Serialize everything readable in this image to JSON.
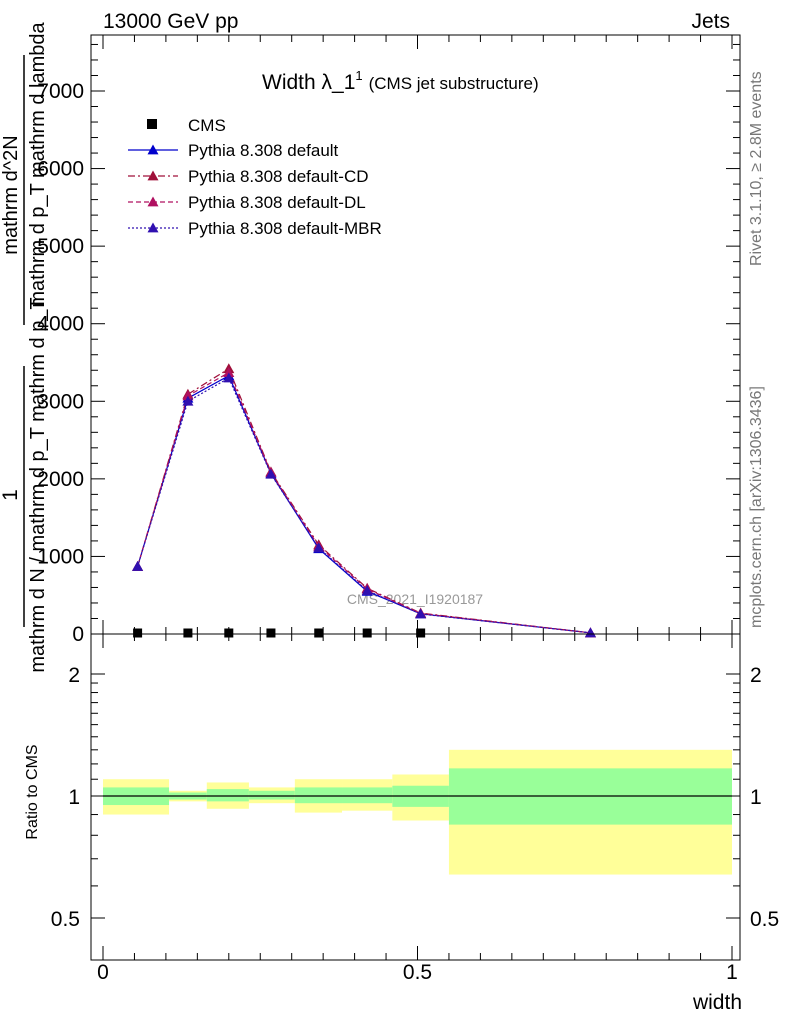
{
  "header": {
    "left": "13000 GeV pp",
    "right": "Jets"
  },
  "side_labels": {
    "rivet": "Rivet 3.1.10, ≥ 2.8M events",
    "mcplots": "mcplots.cern.ch [arXiv:1306.3436]"
  },
  "chart_data": [
    {
      "type": "line",
      "panel": "main",
      "title_main": "Width λ_1",
      "title_sup": "1",
      "title_small": "(CMS jet substructure)",
      "watermark": "CMS_2021_I1920187",
      "ylabel_num": "1",
      "ylabel_den": "mathrm d N / mathrm d p_T mathrm d p_T",
      "ylabel_num2": "mathrm d^2N",
      "ylabel_den2": "mathrm d p_T mathrm d lambda",
      "xlim": [
        0,
        1
      ],
      "ylim": [
        0,
        7600
      ],
      "yticks": [
        {
          "v": 0,
          "label": "0"
        },
        {
          "v": 1000,
          "label": "1000"
        },
        {
          "v": 2000,
          "label": "2000"
        },
        {
          "v": 3000,
          "label": "3000"
        },
        {
          "v": 4000,
          "label": "4000"
        },
        {
          "v": 5000,
          "label": "5000"
        },
        {
          "v": 6000,
          "label": "6000"
        },
        {
          "v": 7000,
          "label": "7000"
        }
      ],
      "cms": {
        "name": "CMS",
        "x": [
          0.055,
          0.135,
          0.2,
          0.267,
          0.343,
          0.42,
          0.505
        ],
        "y": [
          0,
          0,
          0,
          0,
          0,
          0,
          0
        ]
      },
      "series": [
        {
          "name": "Pythia 8.308 default",
          "color": "#0000cc",
          "dash": "",
          "x": [
            0.055,
            0.135,
            0.2,
            0.267,
            0.343,
            0.42,
            0.505,
            0.775
          ],
          "y": [
            870,
            3040,
            3330,
            2070,
            1100,
            550,
            260,
            15
          ]
        },
        {
          "name": "Pythia 8.308 default-CD",
          "color": "#a0103a",
          "dash": "7,3,2,3",
          "x": [
            0.055,
            0.135,
            0.2,
            0.267,
            0.343,
            0.42,
            0.505,
            0.775
          ],
          "y": [
            870,
            3090,
            3420,
            2090,
            1150,
            590,
            270,
            15
          ]
        },
        {
          "name": "Pythia 8.308 default-DL",
          "color": "#b01060",
          "dash": "5,3",
          "x": [
            0.055,
            0.135,
            0.2,
            0.267,
            0.343,
            0.42,
            0.505,
            0.775
          ],
          "y": [
            870,
            3070,
            3370,
            2080,
            1130,
            580,
            265,
            15
          ]
        },
        {
          "name": "Pythia 8.308 default-MBR",
          "color": "#3010b0",
          "dash": "2,2",
          "x": [
            0.055,
            0.135,
            0.2,
            0.267,
            0.343,
            0.42,
            0.505,
            0.775
          ],
          "y": [
            870,
            3000,
            3300,
            2060,
            1110,
            560,
            258,
            15
          ]
        }
      ]
    },
    {
      "type": "area",
      "panel": "ratio",
      "ylabel": "Ratio to CMS",
      "ylim": [
        0.4,
        2.4
      ],
      "yticks": [
        {
          "v": 0.5,
          "label": "0.5"
        },
        {
          "v": 1,
          "label": "1"
        },
        {
          "v": 2,
          "label": "2"
        }
      ],
      "xlim": [
        0,
        1
      ],
      "xticks": [
        {
          "v": 0,
          "label": "0"
        },
        {
          "v": 0.5,
          "label": "0.5"
        },
        {
          "v": 1,
          "label": "1"
        }
      ],
      "xlabel": "width",
      "green_color": "#99ff99",
      "yellow_color": "#ffff99",
      "bins": [
        {
          "x0": 0.0,
          "x1": 0.105,
          "g": [
            0.95,
            1.05
          ],
          "yy": [
            0.9,
            1.1
          ]
        },
        {
          "x0": 0.105,
          "x1": 0.165,
          "g": [
            0.98,
            1.02
          ],
          "yy": [
            0.97,
            1.03
          ]
        },
        {
          "x0": 0.165,
          "x1": 0.232,
          "g": [
            0.97,
            1.04
          ],
          "yy": [
            0.93,
            1.08
          ]
        },
        {
          "x0": 0.232,
          "x1": 0.305,
          "g": [
            0.98,
            1.03
          ],
          "yy": [
            0.96,
            1.05
          ]
        },
        {
          "x0": 0.305,
          "x1": 0.38,
          "g": [
            0.96,
            1.05
          ],
          "yy": [
            0.91,
            1.1
          ]
        },
        {
          "x0": 0.38,
          "x1": 0.46,
          "g": [
            0.96,
            1.05
          ],
          "yy": [
            0.92,
            1.1
          ]
        },
        {
          "x0": 0.46,
          "x1": 0.55,
          "g": [
            0.94,
            1.06
          ],
          "yy": [
            0.87,
            1.13
          ]
        },
        {
          "x0": 0.55,
          "x1": 1.0,
          "g": [
            0.85,
            1.17
          ],
          "yy": [
            0.64,
            1.3
          ]
        }
      ]
    }
  ]
}
